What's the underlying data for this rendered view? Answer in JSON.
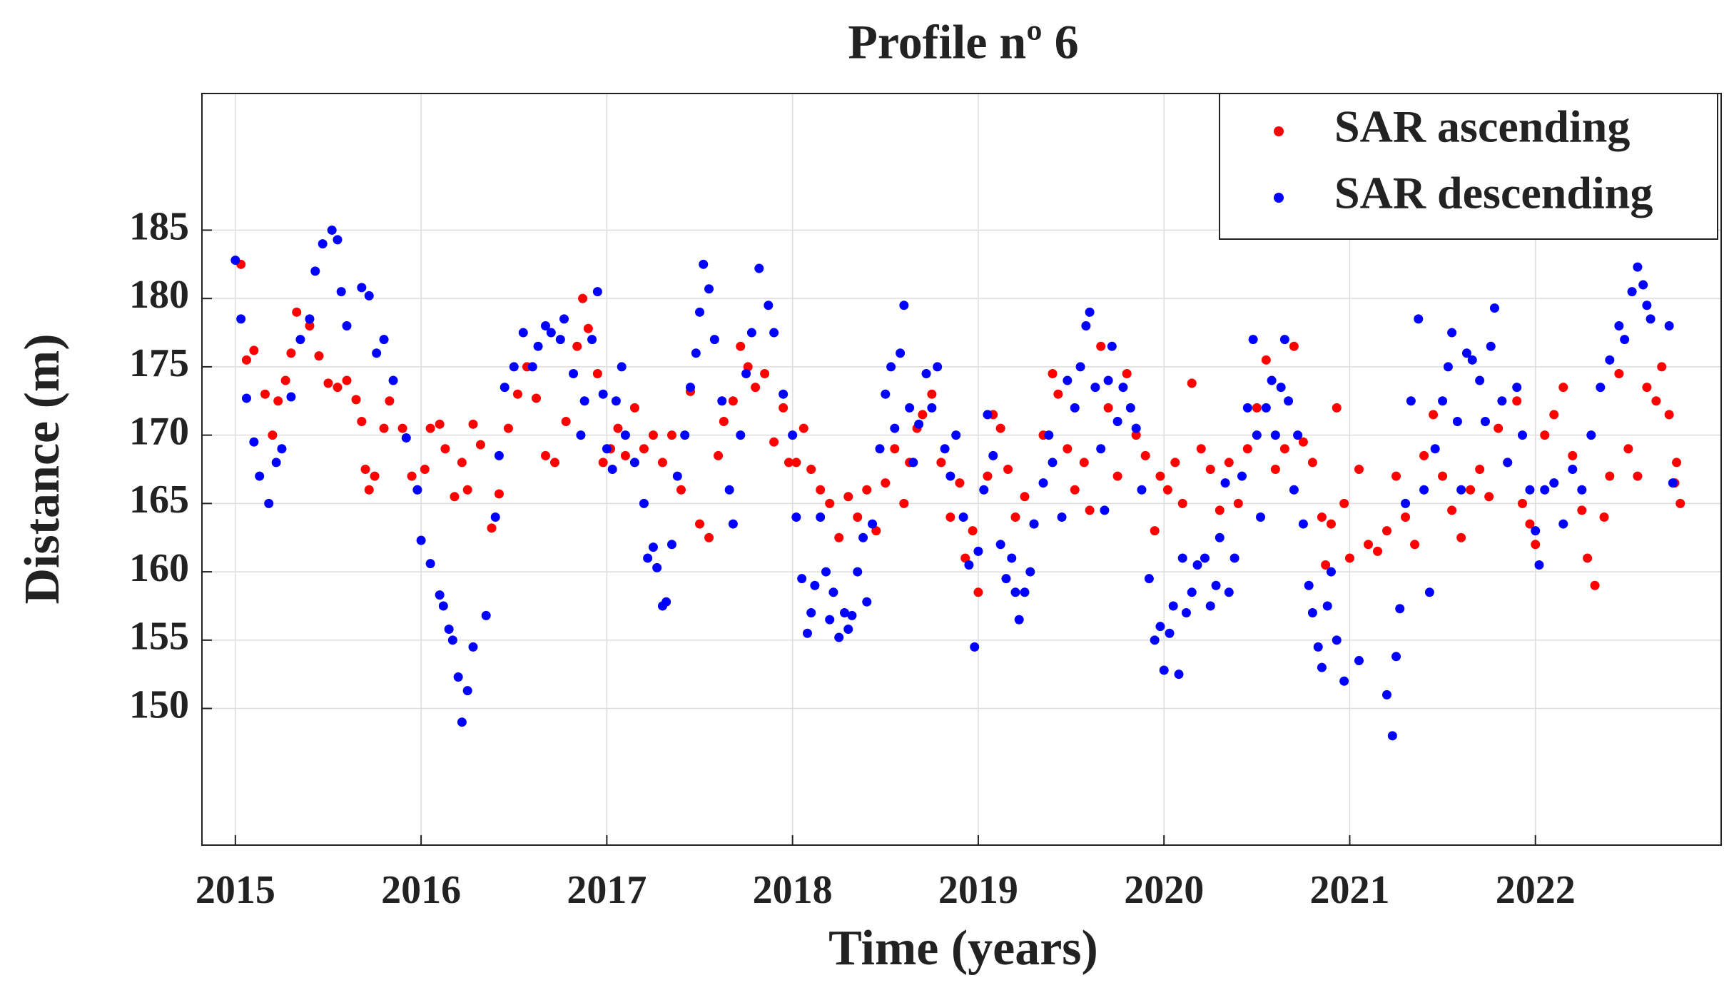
{
  "chart_data": {
    "type": "scatter",
    "title": "Profile nº 6",
    "x_label": "Time (years)",
    "y_label": "Distance (m)",
    "xlim": [
      2014.82,
      2023.0
    ],
    "xticks": [
      2015,
      2016,
      2017,
      2018,
      2019,
      2020,
      2021,
      2022
    ],
    "ylim": [
      140,
      195
    ],
    "yticks": [
      150,
      155,
      160,
      165,
      170,
      175,
      180,
      185
    ],
    "grid": true,
    "legend": "upper right",
    "series": [
      {
        "name": "SAR ascending",
        "color": "#ff0000",
        "x": [
          2015.03,
          2015.06,
          2015.1,
          2015.16,
          2015.2,
          2015.23,
          2015.27,
          2015.3,
          2015.33,
          2015.4,
          2015.45,
          2015.5,
          2015.55,
          2015.6,
          2015.65,
          2015.68,
          2015.7,
          2015.72,
          2015.75,
          2015.8,
          2015.83,
          2015.9,
          2015.95,
          2015.98,
          2016.02,
          2016.05,
          2016.1,
          2016.13,
          2016.18,
          2016.22,
          2016.25,
          2016.28,
          2016.32,
          2016.38,
          2016.42,
          2016.47,
          2016.52,
          2016.57,
          2016.62,
          2016.67,
          2016.72,
          2016.78,
          2016.84,
          2016.87,
          2016.9,
          2016.95,
          2016.98,
          2017.02,
          2017.06,
          2017.1,
          2017.15,
          2017.2,
          2017.25,
          2017.3,
          2017.35,
          2017.4,
          2017.45,
          2017.5,
          2017.55,
          2017.6,
          2017.63,
          2017.68,
          2017.72,
          2017.76,
          2017.8,
          2017.85,
          2017.9,
          2017.95,
          2017.98,
          2018.02,
          2018.06,
          2018.1,
          2018.15,
          2018.2,
          2018.25,
          2018.3,
          2018.35,
          2018.4,
          2018.45,
          2018.5,
          2018.55,
          2018.6,
          2018.63,
          2018.67,
          2018.7,
          2018.75,
          2018.8,
          2018.85,
          2018.9,
          2018.93,
          2018.97,
          2019.0,
          2019.05,
          2019.08,
          2019.12,
          2019.16,
          2019.2,
          2019.25,
          2019.3,
          2019.35,
          2019.4,
          2019.43,
          2019.48,
          2019.52,
          2019.57,
          2019.6,
          2019.66,
          2019.7,
          2019.75,
          2019.8,
          2019.85,
          2019.9,
          2019.95,
          2019.98,
          2020.02,
          2020.06,
          2020.1,
          2020.15,
          2020.2,
          2020.25,
          2020.3,
          2020.35,
          2020.4,
          2020.45,
          2020.5,
          2020.55,
          2020.6,
          2020.65,
          2020.7,
          2020.75,
          2020.8,
          2020.85,
          2020.87,
          2020.9,
          2020.93,
          2020.97,
          2021.0,
          2021.05,
          2021.1,
          2021.15,
          2021.2,
          2021.25,
          2021.3,
          2021.35,
          2021.4,
          2021.45,
          2021.5,
          2021.55,
          2021.6,
          2021.65,
          2021.7,
          2021.75,
          2021.8,
          2021.85,
          2021.9,
          2021.93,
          2021.97,
          2022.0,
          2022.05,
          2022.1,
          2022.15,
          2022.2,
          2022.25,
          2022.28,
          2022.32,
          2022.37,
          2022.4,
          2022.45,
          2022.5,
          2022.55,
          2022.6,
          2022.65,
          2022.68,
          2022.72,
          2022.75,
          2022.76,
          2022.78
        ],
        "values": [
          182.5,
          175.5,
          176.2,
          173,
          170,
          172.5,
          174,
          176,
          179,
          178,
          175.8,
          173.8,
          173.5,
          174,
          172.6,
          171,
          167.5,
          166,
          167,
          170.5,
          172.5,
          170.5,
          167,
          166,
          167.5,
          170.5,
          170.8,
          169,
          165.5,
          168,
          166,
          170.8,
          169.3,
          163.2,
          165.7,
          170.5,
          173,
          175,
          172.7,
          168.5,
          168,
          171,
          176.5,
          180,
          177.8,
          174.5,
          168,
          169,
          170.5,
          168.5,
          172,
          169,
          170,
          168,
          170,
          166,
          173.2,
          163.5,
          162.5,
          168.5,
          171,
          172.5,
          176.5,
          175,
          173.5,
          174.5,
          169.5,
          172,
          168,
          168,
          170.5,
          167.5,
          166,
          165,
          162.5,
          165.5,
          164,
          166,
          163,
          166.5,
          169,
          165,
          168,
          170.5,
          171.5,
          173,
          168,
          164,
          166.5,
          161,
          163,
          158.5,
          167,
          171.5,
          170.5,
          167.5,
          164,
          165.5,
          163.5,
          170,
          174.5,
          173,
          169,
          166,
          168,
          164.5,
          176.5,
          172,
          167,
          174.5,
          170,
          168.5,
          163,
          167,
          166,
          168,
          165,
          173.8,
          169,
          167.5,
          164.5,
          168,
          165,
          169,
          172,
          175.5,
          167.5,
          169,
          176.5,
          169.5,
          168,
          164,
          160.5,
          163.5,
          172,
          165,
          161,
          167.5,
          162,
          161.5,
          163,
          167,
          164,
          162,
          168.5,
          171.5,
          167,
          164.5,
          162.5,
          166,
          167.5,
          165.5,
          170.5,
          168,
          172.5,
          165,
          163.5,
          162,
          170,
          171.5,
          173.5,
          168.5,
          164.5,
          161,
          159,
          164,
          167,
          174.5,
          169,
          167,
          173.5,
          172.5,
          175,
          171.5,
          166.5,
          168,
          165
        ]
      },
      {
        "name": "SAR descending",
        "color": "#0000ff",
        "x": [
          2015.0,
          2015.03,
          2015.06,
          2015.1,
          2015.13,
          2015.18,
          2015.22,
          2015.25,
          2015.3,
          2015.35,
          2015.4,
          2015.43,
          2015.47,
          2015.52,
          2015.55,
          2015.57,
          2015.6,
          2015.68,
          2015.72,
          2015.76,
          2015.8,
          2015.85,
          2015.92,
          2015.98,
          2016.0,
          2016.05,
          2016.1,
          2016.12,
          2016.15,
          2016.17,
          2016.2,
          2016.22,
          2016.25,
          2016.28,
          2016.35,
          2016.4,
          2016.42,
          2016.45,
          2016.5,
          2016.55,
          2016.6,
          2016.63,
          2016.67,
          2016.7,
          2016.75,
          2016.77,
          2016.82,
          2016.86,
          2016.88,
          2016.92,
          2016.95,
          2016.98,
          2017.0,
          2017.03,
          2017.05,
          2017.08,
          2017.1,
          2017.15,
          2017.2,
          2017.22,
          2017.25,
          2017.27,
          2017.3,
          2017.32,
          2017.35,
          2017.38,
          2017.42,
          2017.45,
          2017.48,
          2017.5,
          2017.52,
          2017.55,
          2017.58,
          2017.62,
          2017.66,
          2017.68,
          2017.72,
          2017.75,
          2017.78,
          2017.82,
          2017.87,
          2017.9,
          2017.95,
          2018.0,
          2018.02,
          2018.05,
          2018.08,
          2018.1,
          2018.12,
          2018.15,
          2018.18,
          2018.2,
          2018.22,
          2018.25,
          2018.28,
          2018.3,
          2018.32,
          2018.35,
          2018.38,
          2018.4,
          2018.43,
          2018.47,
          2018.5,
          2018.53,
          2018.55,
          2018.58,
          2018.6,
          2018.63,
          2018.65,
          2018.68,
          2018.72,
          2018.75,
          2018.78,
          2018.82,
          2018.85,
          2018.88,
          2018.92,
          2018.95,
          2018.98,
          2019.0,
          2019.03,
          2019.05,
          2019.08,
          2019.12,
          2019.15,
          2019.18,
          2019.2,
          2019.22,
          2019.25,
          2019.28,
          2019.3,
          2019.35,
          2019.38,
          2019.4,
          2019.45,
          2019.48,
          2019.52,
          2019.55,
          2019.58,
          2019.6,
          2019.63,
          2019.66,
          2019.68,
          2019.7,
          2019.72,
          2019.75,
          2019.78,
          2019.82,
          2019.85,
          2019.88,
          2019.92,
          2019.95,
          2019.98,
          2020.0,
          2020.03,
          2020.05,
          2020.08,
          2020.1,
          2020.12,
          2020.15,
          2020.18,
          2020.22,
          2020.25,
          2020.28,
          2020.3,
          2020.33,
          2020.35,
          2020.38,
          2020.42,
          2020.45,
          2020.48,
          2020.5,
          2020.52,
          2020.55,
          2020.58,
          2020.6,
          2020.63,
          2020.65,
          2020.67,
          2020.7,
          2020.72,
          2020.75,
          2020.78,
          2020.8,
          2020.83,
          2020.85,
          2020.88,
          2020.9,
          2020.93,
          2020.97,
          2021.05,
          2021.2,
          2021.23,
          2021.25,
          2021.27,
          2021.3,
          2021.33,
          2021.37,
          2021.4,
          2021.43,
          2021.46,
          2021.5,
          2021.53,
          2021.55,
          2021.58,
          2021.6,
          2021.63,
          2021.66,
          2021.7,
          2021.73,
          2021.76,
          2021.78,
          2021.82,
          2021.85,
          2021.9,
          2021.93,
          2021.97,
          2022.0,
          2022.02,
          2022.05,
          2022.1,
          2022.15,
          2022.2,
          2022.25,
          2022.3,
          2022.35,
          2022.4,
          2022.45,
          2022.48,
          2022.52,
          2022.55,
          2022.58,
          2022.6,
          2022.62,
          2022.72,
          2022.74
        ],
        "values": [
          182.8,
          178.5,
          172.7,
          169.5,
          167,
          165,
          168,
          169,
          172.8,
          177,
          178.5,
          182,
          184,
          185,
          184.3,
          180.5,
          178,
          180.8,
          180.2,
          176,
          177,
          174,
          169.8,
          166,
          162.3,
          160.6,
          158.3,
          157.5,
          155.8,
          155,
          152.3,
          149,
          151.3,
          154.5,
          156.8,
          164,
          168.5,
          173.5,
          175,
          177.5,
          175,
          176.5,
          178,
          177.5,
          177,
          178.5,
          174.5,
          170,
          172.5,
          177,
          180.5,
          173,
          169,
          167.5,
          172.5,
          175,
          170,
          168,
          165,
          161,
          161.8,
          160.3,
          157.5,
          157.8,
          162,
          167,
          170,
          173.5,
          176,
          179,
          182.5,
          180.7,
          177,
          172.5,
          166,
          163.5,
          170,
          174.5,
          177.5,
          182.2,
          179.5,
          177.5,
          173,
          170,
          164,
          159.5,
          155.5,
          157,
          159,
          164,
          160,
          156.5,
          158.5,
          155.2,
          157,
          155.8,
          156.8,
          160,
          162.5,
          157.8,
          163.5,
          169,
          173,
          175,
          170.5,
          176,
          179.5,
          172,
          168,
          170.8,
          174.5,
          172,
          175,
          169,
          167,
          170,
          164,
          160.5,
          154.5,
          161.5,
          166,
          171.5,
          168.5,
          162,
          159.5,
          161,
          158.5,
          156.5,
          158.5,
          160,
          163.5,
          166.5,
          170,
          168,
          164,
          174,
          172,
          175,
          178,
          179,
          173.5,
          169,
          164.5,
          174,
          176.5,
          171,
          173.5,
          172,
          170.5,
          166,
          159.5,
          155,
          156,
          152.8,
          155.5,
          157.5,
          152.5,
          161,
          157,
          158.5,
          160.5,
          161,
          157.5,
          159,
          162.5,
          166.5,
          158.5,
          161,
          167,
          172,
          177,
          170,
          164,
          172,
          174,
          170,
          173.5,
          177,
          172.5,
          166,
          170,
          163.5,
          159,
          157,
          154.5,
          153,
          157.5,
          160,
          155,
          152,
          153.5,
          151,
          148,
          153.8,
          157.3,
          165,
          172.5,
          178.5,
          166,
          158.5,
          169,
          172.5,
          175,
          177.5,
          171,
          166,
          176,
          175.5,
          174,
          171,
          176.5,
          179.3,
          172.5,
          168,
          173.5,
          170,
          166,
          163,
          160.5,
          166,
          166.5,
          163.5,
          167.5,
          166,
          170,
          173.5,
          175.5,
          178,
          177,
          180.5,
          182.3,
          181,
          179.5,
          178.5,
          178,
          166.5
        ]
      }
    ]
  }
}
